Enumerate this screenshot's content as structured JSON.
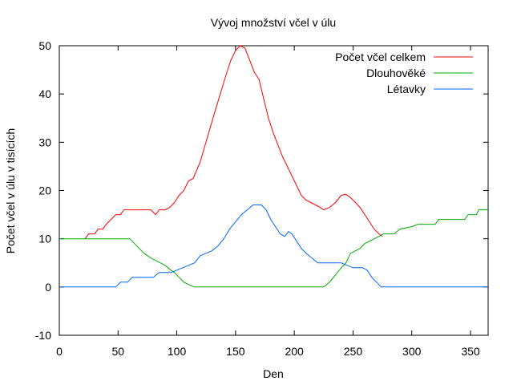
{
  "chart_data": {
    "type": "line",
    "title": "Vývoj množství včel v úlu",
    "xlabel": "Den",
    "ylabel": "Počet včel v úlu v tisících",
    "xlim": [
      0,
      365
    ],
    "ylim": [
      -10,
      50
    ],
    "xticks": [
      0,
      50,
      100,
      150,
      200,
      250,
      300,
      350
    ],
    "yticks": [
      -10,
      0,
      10,
      20,
      30,
      40,
      50
    ],
    "grid": false,
    "legend_position": "top-right",
    "series": [
      {
        "name": "Počet včel celkem",
        "color": "#ff0000",
        "points": [
          [
            22,
            10
          ],
          [
            25,
            11
          ],
          [
            30,
            11
          ],
          [
            33,
            12
          ],
          [
            37,
            12
          ],
          [
            40,
            13
          ],
          [
            44,
            14
          ],
          [
            48,
            15
          ],
          [
            52,
            15
          ],
          [
            55,
            16
          ],
          [
            60,
            16
          ],
          [
            70,
            16
          ],
          [
            78,
            16
          ],
          [
            82,
            15
          ],
          [
            85,
            16
          ],
          [
            90,
            16
          ],
          [
            94,
            16.5
          ],
          [
            98,
            17.5
          ],
          [
            102,
            19
          ],
          [
            106,
            20
          ],
          [
            110,
            22
          ],
          [
            114,
            22.5
          ],
          [
            120,
            26
          ],
          [
            126,
            31
          ],
          [
            132,
            36
          ],
          [
            137,
            40
          ],
          [
            142,
            44
          ],
          [
            146,
            47
          ],
          [
            150,
            49
          ],
          [
            154,
            50
          ],
          [
            158,
            49.5
          ],
          [
            162,
            47
          ],
          [
            166,
            44.5
          ],
          [
            170,
            43
          ],
          [
            174,
            39
          ],
          [
            178,
            35
          ],
          [
            182,
            32
          ],
          [
            186,
            29.5
          ],
          [
            190,
            27
          ],
          [
            194,
            25
          ],
          [
            198,
            23
          ],
          [
            202,
            21
          ],
          [
            206,
            19
          ],
          [
            210,
            18
          ],
          [
            214,
            17.5
          ],
          [
            218,
            17
          ],
          [
            222,
            16.5
          ],
          [
            225,
            16
          ],
          [
            230,
            16.5
          ],
          [
            235,
            17.5
          ],
          [
            240,
            19
          ],
          [
            244,
            19.2
          ],
          [
            248,
            18.5
          ],
          [
            252,
            17.5
          ],
          [
            256,
            16.5
          ],
          [
            260,
            15
          ],
          [
            264,
            13.5
          ],
          [
            268,
            12
          ],
          [
            272,
            11
          ],
          [
            275,
            10.5
          ]
        ]
      },
      {
        "name": "Dlouhověké",
        "color": "#00aa00",
        "points": [
          [
            0,
            10
          ],
          [
            60,
            10
          ],
          [
            64,
            9
          ],
          [
            68,
            8
          ],
          [
            72,
            7
          ],
          [
            75,
            6.5
          ],
          [
            78,
            6
          ],
          [
            82,
            5.5
          ],
          [
            86,
            5
          ],
          [
            90,
            4.5
          ],
          [
            95,
            3.5
          ],
          [
            98,
            3
          ],
          [
            102,
            2
          ],
          [
            106,
            1
          ],
          [
            110,
            0.5
          ],
          [
            115,
            0
          ],
          [
            130,
            0
          ],
          [
            225,
            0
          ],
          [
            230,
            1
          ],
          [
            235,
            2.5
          ],
          [
            240,
            4
          ],
          [
            244,
            5
          ],
          [
            248,
            7
          ],
          [
            252,
            7.5
          ],
          [
            256,
            8
          ],
          [
            260,
            9
          ],
          [
            264,
            9.5
          ],
          [
            268,
            10
          ],
          [
            272,
            10.5
          ],
          [
            276,
            11
          ],
          [
            285,
            11
          ],
          [
            290,
            12
          ],
          [
            300,
            12.5
          ],
          [
            305,
            13
          ],
          [
            320,
            13
          ],
          [
            323,
            14
          ],
          [
            345,
            14
          ],
          [
            348,
            15
          ],
          [
            355,
            15
          ],
          [
            357,
            16
          ],
          [
            365,
            16
          ]
        ]
      },
      {
        "name": "Létavky",
        "color": "#0066ff",
        "points": [
          [
            0,
            0
          ],
          [
            48,
            0
          ],
          [
            52,
            1
          ],
          [
            58,
            1
          ],
          [
            62,
            2
          ],
          [
            68,
            2
          ],
          [
            80,
            2
          ],
          [
            85,
            3
          ],
          [
            95,
            3
          ],
          [
            100,
            3.5
          ],
          [
            105,
            4
          ],
          [
            110,
            4.5
          ],
          [
            115,
            5
          ],
          [
            120,
            6.5
          ],
          [
            125,
            7
          ],
          [
            130,
            7.5
          ],
          [
            135,
            8.5
          ],
          [
            140,
            10
          ],
          [
            145,
            12
          ],
          [
            150,
            13.5
          ],
          [
            155,
            15
          ],
          [
            160,
            16
          ],
          [
            165,
            17
          ],
          [
            172,
            17
          ],
          [
            176,
            16
          ],
          [
            180,
            14
          ],
          [
            184,
            12.5
          ],
          [
            188,
            11
          ],
          [
            192,
            10.5
          ],
          [
            195,
            11.5
          ],
          [
            198,
            11
          ],
          [
            202,
            9.5
          ],
          [
            206,
            8
          ],
          [
            210,
            7
          ],
          [
            215,
            6
          ],
          [
            220,
            5
          ],
          [
            235,
            5
          ],
          [
            240,
            5
          ],
          [
            245,
            4.5
          ],
          [
            250,
            4
          ],
          [
            258,
            4
          ],
          [
            262,
            3.5
          ],
          [
            266,
            2
          ],
          [
            270,
            1
          ],
          [
            274,
            0
          ],
          [
            365,
            0
          ]
        ]
      }
    ]
  }
}
